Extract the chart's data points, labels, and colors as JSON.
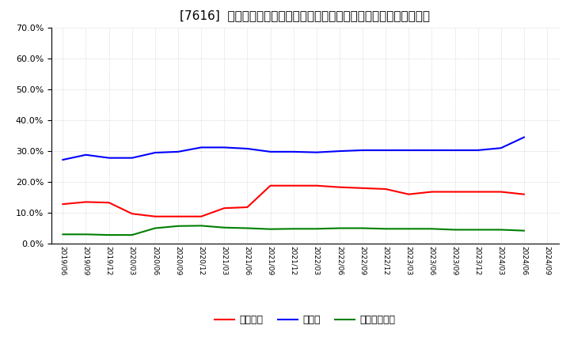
{
  "title": "[7616]  自己資本、のれん、繰延税金資産の総資産に対する比率の推移",
  "x_labels": [
    "2019/06",
    "2019/09",
    "2019/12",
    "2020/03",
    "2020/06",
    "2020/09",
    "2020/12",
    "2021/03",
    "2021/06",
    "2021/09",
    "2021/12",
    "2022/03",
    "2022/06",
    "2022/09",
    "2022/12",
    "2023/03",
    "2023/06",
    "2023/09",
    "2023/12",
    "2024/03",
    "2024/06",
    "2024/09"
  ],
  "jikoshihon": [
    0.128,
    0.135,
    0.133,
    0.097,
    0.088,
    0.088,
    0.088,
    0.115,
    0.118,
    0.188,
    0.188,
    0.188,
    0.183,
    0.18,
    0.177,
    0.16,
    0.168,
    0.168,
    0.168,
    0.168,
    0.16,
    null
  ],
  "noren": [
    0.272,
    0.288,
    0.278,
    0.278,
    0.295,
    0.298,
    0.312,
    0.312,
    0.308,
    0.298,
    0.298,
    0.296,
    0.3,
    0.303,
    0.303,
    0.303,
    0.303,
    0.303,
    0.303,
    0.31,
    0.345,
    null
  ],
  "kurinobe": [
    0.03,
    0.03,
    0.028,
    0.028,
    0.05,
    0.057,
    0.058,
    0.052,
    0.05,
    0.047,
    0.048,
    0.048,
    0.05,
    0.05,
    0.048,
    0.048,
    0.048,
    0.045,
    0.045,
    0.045,
    0.042,
    null
  ],
  "colors": {
    "jikoshihon": "#ff0000",
    "noren": "#0000ff",
    "kurinobe": "#008000"
  },
  "legend_labels": {
    "jikoshihon": "自己資本",
    "noren": "のれん",
    "kurinobe": "繰延税金資産"
  },
  "ylim": [
    0.0,
    0.7
  ],
  "yticks": [
    0.0,
    0.1,
    0.2,
    0.3,
    0.4,
    0.5,
    0.6,
    0.7
  ],
  "background_color": "#ffffff",
  "plot_bg_color": "#ffffff",
  "grid_color": "#aaaaaa",
  "title_fontsize": 11,
  "linewidth": 1.5
}
